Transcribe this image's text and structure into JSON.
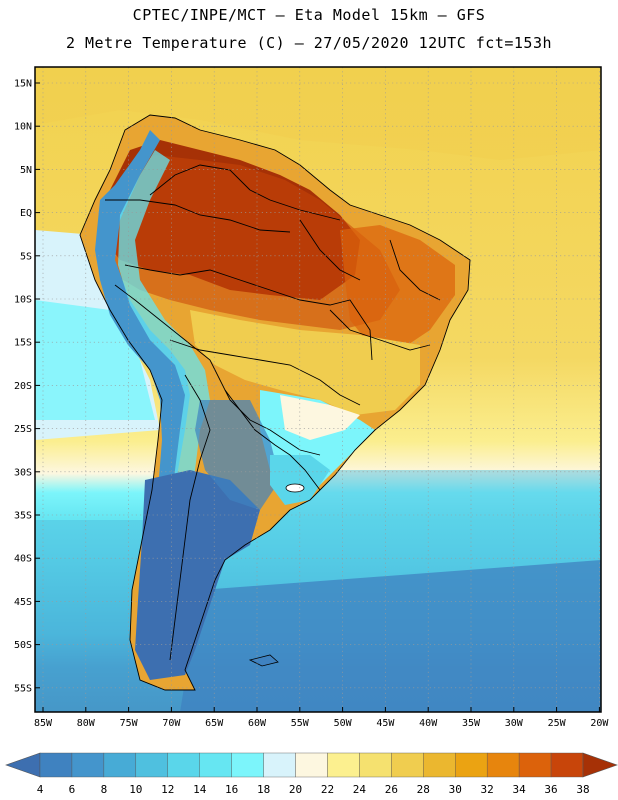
{
  "header": {
    "line1": "CPTEC/INPE/MCT –  Eta Model 15km – GFS",
    "line2": "2 Metre Temperature (C) – 27/05/2020 12UTC fct=153h"
  },
  "map": {
    "lat_labels": [
      "15N",
      "10N",
      "5N",
      "EQ",
      "5S",
      "10S",
      "15S",
      "20S",
      "25S",
      "30S",
      "35S",
      "40S",
      "45S",
      "50S",
      "55S"
    ],
    "lon_labels": [
      "85W",
      "80W",
      "75W",
      "70W",
      "65W",
      "60W",
      "55W",
      "50W",
      "45W",
      "40W",
      "35W",
      "30W",
      "25W",
      "20W"
    ]
  },
  "colorbar": {
    "values": [
      "4",
      "6",
      "8",
      "10",
      "12",
      "14",
      "16",
      "18",
      "20",
      "22",
      "24",
      "26",
      "28",
      "30",
      "32",
      "34",
      "36",
      "38"
    ],
    "colors": [
      "#3d6fb0",
      "#3f82c0",
      "#4495cc",
      "#47abd6",
      "#4fc0df",
      "#5ad6ea",
      "#66e6f2",
      "#7cf5fb",
      "#d8f3fb",
      "#fdf7e0",
      "#fcf08f",
      "#f5e16f",
      "#f0cd4f",
      "#ebb72f",
      "#eba312",
      "#e7850d",
      "#dc620b",
      "#c8450a",
      "#a63106"
    ]
  }
}
